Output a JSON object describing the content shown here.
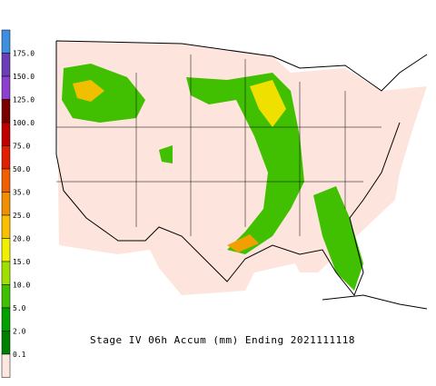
{
  "title": "Stage IV 06h Accum (mm) Ending 2021111118",
  "legend": {
    "labels": [
      "175.0",
      "150.0",
      "125.0",
      "100.0",
      "75.0",
      "50.0",
      "35.0",
      "25.0",
      "20.0",
      "15.0",
      "10.0",
      "5.0",
      "2.0",
      "0.1"
    ],
    "colors": [
      "#3f8fe0",
      "#6a3fb8",
      "#8f3fd0",
      "#7a0000",
      "#c00000",
      "#e02000",
      "#f06000",
      "#f09000",
      "#f8c000",
      "#f0f000",
      "#a0e000",
      "#40c000",
      "#00a000",
      "#008000",
      "#fde8e0"
    ]
  }
}
